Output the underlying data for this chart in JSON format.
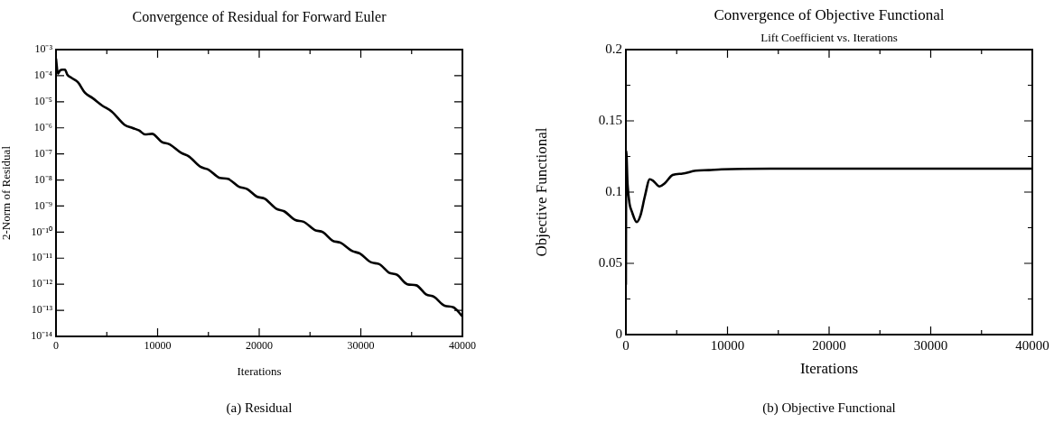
{
  "chart_data": [
    {
      "type": "line",
      "title": "Convergence of Residual for Forward Euler",
      "xlabel": "Iterations",
      "ylabel": "2-Norm of Residual",
      "log": "y",
      "grid": false,
      "legend": false,
      "x": [
        0,
        190,
        412,
        634,
        888,
        1110,
        1523,
        2157,
        2855,
        3584,
        4536,
        5488,
        6756,
        7550,
        8184,
        8755,
        9453,
        10404,
        11197,
        12307,
        13100,
        14211,
        15004,
        16114,
        16907,
        18017,
        18810,
        19762,
        20555,
        21665,
        22458,
        23569,
        24362,
        25472,
        26265,
        27216,
        28009,
        29120,
        29913,
        31023,
        31816,
        32768,
        33561,
        34576,
        35464,
        36415,
        37208,
        38255,
        39111,
        40000
      ],
      "series": [
        {
          "color": "#000000",
          "values": [
            0.00045,
            0.00012,
            0.00016,
            0.00017,
            0.00017,
            0.00011,
            8.3e-05,
            5.6e-05,
            2.2e-05,
            1.4e-05,
            7.2e-06,
            4.2e-06,
            1.3e-06,
            9.8e-07,
            7.9e-07,
            5.6e-07,
            5.9e-07,
            2.9e-07,
            2.3e-07,
            1.1e-07,
            7.9e-08,
            3.2e-08,
            2.5e-08,
            1.2e-08,
            1.1e-08,
            5.5e-09,
            4.5e-09,
            2.3e-09,
            1.9e-09,
            7.9e-10,
            6.3e-10,
            2.9e-10,
            2.5e-10,
            1.2e-10,
            1e-10,
            4.7e-11,
            3.9e-11,
            1.9e-11,
            1.5e-11,
            6.9e-12,
            5.9e-12,
            2.8e-12,
            2.3e-12,
            1e-12,
            9.1e-13,
            4.1e-13,
            3.3e-13,
            1.5e-13,
            1.3e-13,
            5.9e-14
          ]
        }
      ],
      "xlim": [
        0,
        40000
      ],
      "xticks": [
        0,
        {
          "value": 5000,
          "label": null
        },
        10000,
        {
          "value": 15000,
          "label": null
        },
        20000,
        {
          "value": 25000,
          "label": null
        },
        30000,
        {
          "value": 35000,
          "label": null
        },
        40000
      ],
      "ylim": [
        1e-14,
        0.001
      ],
      "yticks": [
        {
          "value": 1e-14,
          "label": "10⁻¹⁴"
        },
        {
          "value": 1e-13,
          "label": "10⁻¹³"
        },
        {
          "value": 1e-12,
          "label": "10⁻¹²"
        },
        {
          "value": 1e-11,
          "label": "10⁻¹¹"
        },
        {
          "value": 1e-10,
          "label": "10⁻¹⁰"
        },
        {
          "value": 1e-09,
          "label": "10⁻⁹"
        },
        {
          "value": 1e-08,
          "label": "10⁻⁸"
        },
        {
          "value": 1e-07,
          "label": "10⁻⁷"
        },
        {
          "value": 1e-06,
          "label": "10⁻⁶"
        },
        {
          "value": 1e-05,
          "label": "10⁻⁵"
        },
        {
          "value": 0.0001,
          "label": "10⁻⁴"
        },
        {
          "value": 0.001,
          "label": "10⁻³"
        }
      ],
      "annotations": [
        "(a) Residual"
      ]
    },
    {
      "type": "line",
      "title": "Convergence of Objective Functional",
      "subtitle": "Lift Coefficient vs. Iterations",
      "xlabel": "Iterations",
      "ylabel": "Objective Functional",
      "grid": false,
      "legend": false,
      "x": [
        0,
        32,
        160,
        354,
        579,
        1062,
        1448,
        1866,
        2349,
        2671,
        3315,
        3797,
        4602,
        5568,
        6855,
        8142,
        9429,
        14256,
        40000
      ],
      "series": [
        {
          "color": "#000000",
          "values": [
            0.035,
            0.129,
            0.106,
            0.092,
            0.0865,
            0.079,
            0.084,
            0.097,
            0.109,
            0.108,
            0.104,
            0.106,
            0.112,
            0.113,
            0.115,
            0.1154,
            0.116,
            0.1165,
            0.1165
          ]
        }
      ],
      "xlim": [
        0,
        40000
      ],
      "xticks": [
        0,
        {
          "value": 5000,
          "label": null
        },
        10000,
        {
          "value": 15000,
          "label": null
        },
        20000,
        {
          "value": 25000,
          "label": null
        },
        30000,
        {
          "value": 35000,
          "label": null
        },
        40000
      ],
      "ylim": [
        0,
        0.2
      ],
      "yticks": [
        0,
        {
          "value": 0.025,
          "label": null
        },
        0.05,
        {
          "value": 0.075,
          "label": null
        },
        0.1,
        {
          "value": 0.125,
          "label": null
        },
        0.15,
        {
          "value": 0.175,
          "label": null
        },
        0.2
      ],
      "annotations": [
        "(b) Objective Functional"
      ]
    }
  ]
}
